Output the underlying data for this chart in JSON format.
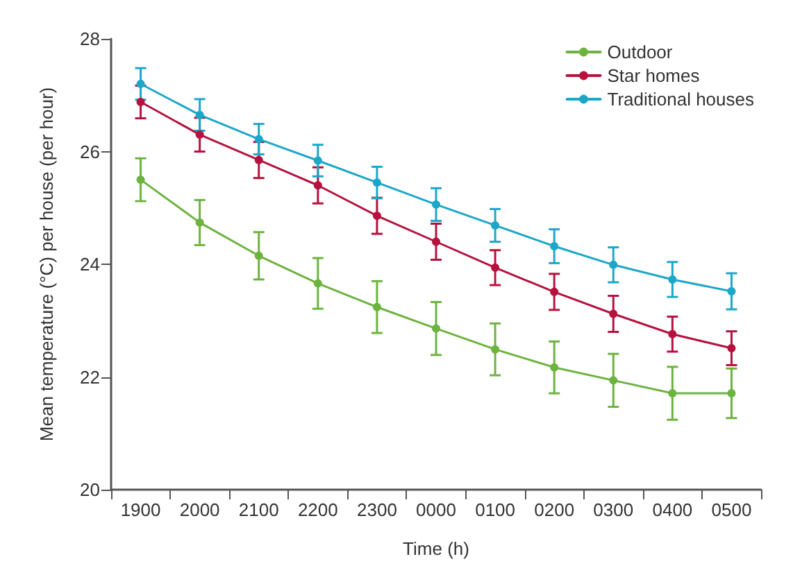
{
  "chart_data": {
    "type": "line",
    "xlabel": "Time (h)",
    "ylabel": "Mean temperature (°C) per house (per hour)",
    "categories": [
      "1900",
      "2000",
      "2100",
      "2200",
      "2300",
      "0000",
      "0100",
      "0200",
      "0300",
      "0400",
      "0500"
    ],
    "series": [
      {
        "name": "Outdoor",
        "color": "#6db33f",
        "values": [
          25.5,
          24.74,
          24.15,
          23.66,
          23.24,
          22.86,
          22.49,
          22.17,
          21.94,
          21.71,
          21.71
        ],
        "errors": [
          0.38,
          0.4,
          0.42,
          0.45,
          0.46,
          0.47,
          0.46,
          0.46,
          0.47,
          0.47,
          0.44
        ]
      },
      {
        "name": "Star homes",
        "color": "#b5123e",
        "values": [
          26.88,
          26.3,
          25.85,
          25.4,
          24.86,
          24.4,
          23.94,
          23.51,
          23.12,
          22.76,
          22.51
        ],
        "errors": [
          0.29,
          0.3,
          0.32,
          0.32,
          0.32,
          0.32,
          0.31,
          0.32,
          0.32,
          0.31,
          0.3
        ]
      },
      {
        "name": "Traditional houses",
        "color": "#1ca7c9",
        "values": [
          27.2,
          26.65,
          26.22,
          25.84,
          25.45,
          25.06,
          24.69,
          24.32,
          23.99,
          23.73,
          23.52
        ],
        "errors": [
          0.28,
          0.28,
          0.27,
          0.28,
          0.28,
          0.29,
          0.29,
          0.3,
          0.31,
          0.31,
          0.32
        ]
      }
    ],
    "ylim": [
      20,
      28
    ],
    "yticks": [
      20,
      22,
      24,
      26,
      28
    ],
    "grid": false,
    "legend": "top right",
    "marker": "circle",
    "line_style": "solid"
  }
}
